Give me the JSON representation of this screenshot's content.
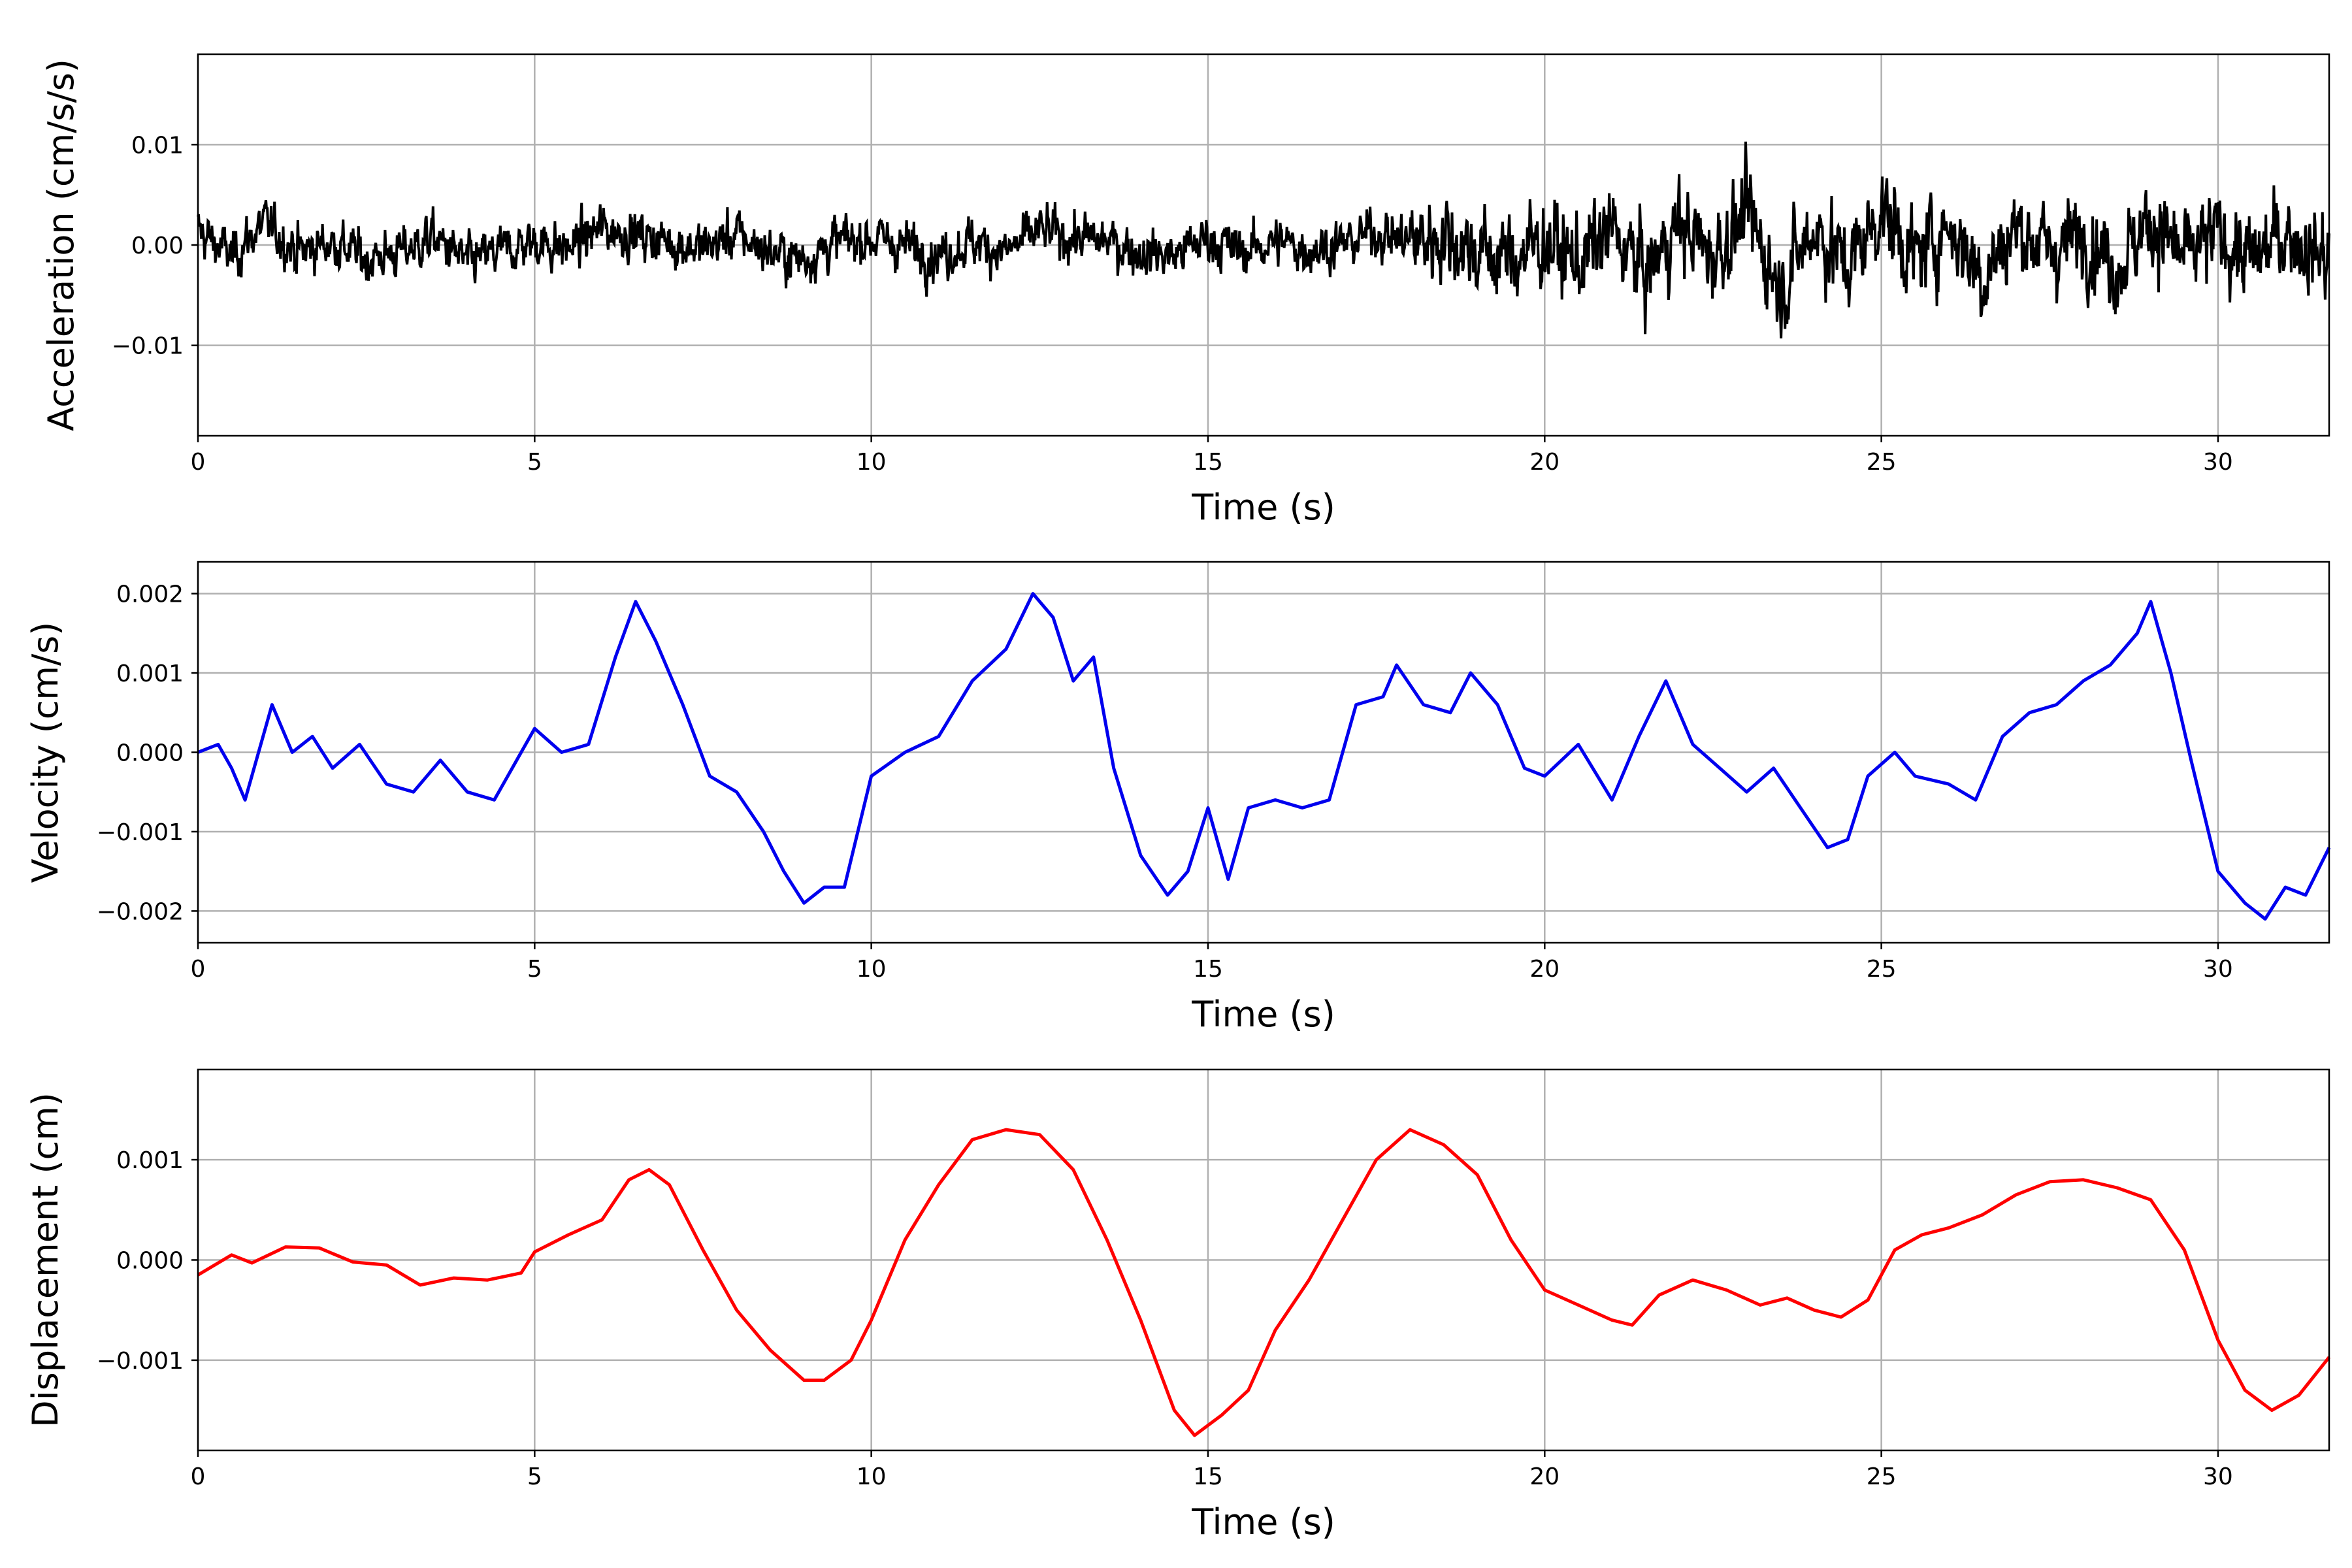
{
  "chart_data": [
    {
      "type": "line",
      "xlabel": "Time (s)",
      "ylabel": "Acceleration (cm/s/s)",
      "xlim": [
        0,
        31.65
      ],
      "ylim": [
        -0.019,
        0.019
      ],
      "xticks": [
        "0",
        "5",
        "10",
        "15",
        "20",
        "25",
        "30"
      ],
      "yticks": [
        -0.01,
        0.0,
        0.01
      ],
      "ytick_labels": [
        "−0.01",
        "0.00",
        "0.01"
      ],
      "grid": true,
      "series": [
        {
          "color": "#000000",
          "x": [
            0,
            0.5,
            1,
            1.5,
            2,
            2.5,
            3,
            3.5,
            4,
            4.5,
            5,
            5.5,
            6,
            6.5,
            7,
            7.5,
            8,
            8.5,
            9,
            9.5,
            10,
            10.5,
            11,
            11.5,
            12,
            12.5,
            13,
            13.5,
            14,
            14.5,
            15,
            15.5,
            16,
            16.5,
            17,
            17.5,
            18,
            18.5,
            19,
            19.5,
            20,
            20.5,
            21,
            21.5,
            22,
            22.5,
            23,
            23.5,
            24,
            24.5,
            25,
            25.5,
            26,
            26.5,
            27,
            27.5,
            28,
            28.5,
            29,
            29.5,
            30,
            30.5,
            31,
            31.5
          ],
          "y": [
            0.004,
            -0.003,
            0.006,
            -0.002,
            0.001,
            -0.004,
            -0.002,
            0.002,
            -0.005,
            -0.002,
            0.001,
            -0.001,
            0.005,
            0.003,
            0.001,
            -0.001,
            0.003,
            -0.002,
            -0.004,
            0.001,
            0.002,
            0.0,
            -0.003,
            0.001,
            -0.002,
            0.004,
            0.002,
            0.001,
            -0.002,
            -0.003,
            0.002,
            -0.002,
            0.001,
            -0.001,
            0.0,
            0.004,
            0.001,
            0.003,
            -0.002,
            -0.004,
            0.001,
            -0.005,
            0.004,
            -0.008,
            0.006,
            -0.003,
            0.009,
            -0.012,
            0.005,
            -0.006,
            0.01,
            -0.004,
            0.006,
            -0.009,
            0.005,
            -0.002,
            0.004,
            -0.006,
            0.007,
            -0.004,
            0.003,
            -0.005,
            0.004,
            -0.003
          ]
        }
      ]
    },
    {
      "type": "line",
      "xlabel": "Time (s)",
      "ylabel": "Velocity (cm/s)",
      "xlim": [
        0,
        31.65
      ],
      "ylim": [
        -0.0024,
        0.0024
      ],
      "xticks": [
        "0",
        "5",
        "10",
        "15",
        "20",
        "25",
        "30"
      ],
      "yticks": [
        -0.002,
        -0.001,
        0.0,
        0.001,
        0.002
      ],
      "ytick_labels": [
        "−0.002",
        "−0.001",
        "0.000",
        "0.001",
        "0.002"
      ],
      "grid": true,
      "series": [
        {
          "color": "#0000ee",
          "x": [
            0,
            0.3,
            0.5,
            0.7,
            1.1,
            1.4,
            1.7,
            2.0,
            2.4,
            2.8,
            3.2,
            3.6,
            4.0,
            4.4,
            4.8,
            5.0,
            5.4,
            5.8,
            6.2,
            6.5,
            6.8,
            7.2,
            7.6,
            8.0,
            8.4,
            8.7,
            9.0,
            9.3,
            9.6,
            10.0,
            10.5,
            11.0,
            11.5,
            12.0,
            12.4,
            12.7,
            13.0,
            13.3,
            13.6,
            14.0,
            14.4,
            14.7,
            15.0,
            15.3,
            15.6,
            16.0,
            16.4,
            16.8,
            17.2,
            17.6,
            17.8,
            18.2,
            18.6,
            18.9,
            19.3,
            19.7,
            20.0,
            20.5,
            21.0,
            21.4,
            21.8,
            22.2,
            22.6,
            23.0,
            23.4,
            23.8,
            24.2,
            24.5,
            24.8,
            25.2,
            25.5,
            26.0,
            26.4,
            26.8,
            27.2,
            27.6,
            28.0,
            28.4,
            28.8,
            29.0,
            29.3,
            29.6,
            30.0,
            30.4,
            30.7,
            31.0,
            31.3,
            31.65
          ],
          "y": [
            0.0,
            0.0001,
            -0.0002,
            -0.0006,
            0.0006,
            0.0,
            0.0002,
            -0.0002,
            0.0001,
            -0.0004,
            -0.0005,
            -0.0001,
            -0.0005,
            -0.0006,
            0.0,
            0.0003,
            0.0,
            0.0001,
            0.0012,
            0.0019,
            0.0014,
            0.0006,
            -0.0003,
            -0.0005,
            -0.001,
            -0.0015,
            -0.0019,
            -0.0017,
            -0.0017,
            -0.0003,
            0.0,
            0.0002,
            0.0009,
            0.0013,
            0.002,
            0.0017,
            0.0009,
            0.0012,
            -0.0002,
            -0.0013,
            -0.0018,
            -0.0015,
            -0.0007,
            -0.0016,
            -0.0007,
            -0.0006,
            -0.0007,
            -0.0006,
            0.0006,
            0.0007,
            0.0011,
            0.0006,
            0.0005,
            0.001,
            0.0006,
            -0.0002,
            -0.0003,
            0.0001,
            -0.0006,
            0.0002,
            0.0009,
            0.0001,
            -0.0002,
            -0.0005,
            -0.0002,
            -0.0007,
            -0.0012,
            -0.0011,
            -0.0003,
            0.0,
            -0.0003,
            -0.0004,
            -0.0006,
            0.0002,
            0.0005,
            0.0006,
            0.0009,
            0.0011,
            0.0015,
            0.0019,
            0.001,
            -0.0001,
            -0.0015,
            -0.0019,
            -0.0021,
            -0.0017,
            -0.0018,
            -0.0012
          ]
        }
      ]
    },
    {
      "type": "line",
      "xlabel": "Time (s)",
      "ylabel": "Displacement (cm)",
      "xlim": [
        0,
        31.65
      ],
      "ylim": [
        -0.0019,
        0.0019
      ],
      "xticks": [
        "0",
        "5",
        "10",
        "15",
        "20",
        "25",
        "30"
      ],
      "yticks": [
        -0.001,
        0.0,
        0.001
      ],
      "ytick_labels": [
        "−0.001",
        "0.000",
        "0.001"
      ],
      "grid": true,
      "series": [
        {
          "color": "#ff0000",
          "x": [
            0,
            0.5,
            0.8,
            1.3,
            1.8,
            2.3,
            2.8,
            3.3,
            3.8,
            4.3,
            4.8,
            5.0,
            5.5,
            6.0,
            6.4,
            6.7,
            7.0,
            7.5,
            8.0,
            8.5,
            9.0,
            9.3,
            9.7,
            10.0,
            10.5,
            11.0,
            11.5,
            12.0,
            12.5,
            13.0,
            13.5,
            14.0,
            14.5,
            14.8,
            15.2,
            15.6,
            16.0,
            16.5,
            17.0,
            17.5,
            18.0,
            18.5,
            19.0,
            19.5,
            20.0,
            20.5,
            21.0,
            21.3,
            21.7,
            22.2,
            22.7,
            23.2,
            23.6,
            24.0,
            24.4,
            24.8,
            25.2,
            25.6,
            26.0,
            26.5,
            27.0,
            27.5,
            28.0,
            28.5,
            29.0,
            29.5,
            30.0,
            30.4,
            30.8,
            31.2,
            31.65
          ],
          "y": [
            -0.00015,
            5e-05,
            -3e-05,
            0.00013,
            0.00012,
            -2e-05,
            -5e-05,
            -0.00025,
            -0.00018,
            -0.0002,
            -0.00013,
            8e-05,
            0.00025,
            0.0004,
            0.0008,
            0.0009,
            0.00075,
            0.0001,
            -0.0005,
            -0.0009,
            -0.0012,
            -0.0012,
            -0.001,
            -0.0006,
            0.0002,
            0.00075,
            0.0012,
            0.0013,
            0.00125,
            0.0009,
            0.0002,
            -0.0006,
            -0.0015,
            -0.00175,
            -0.00155,
            -0.0013,
            -0.0007,
            -0.0002,
            0.0004,
            0.001,
            0.0013,
            0.00115,
            0.00085,
            0.0002,
            -0.0003,
            -0.00045,
            -0.0006,
            -0.00065,
            -0.00035,
            -0.0002,
            -0.0003,
            -0.00045,
            -0.00038,
            -0.0005,
            -0.00057,
            -0.0004,
            0.0001,
            0.00025,
            0.00032,
            0.00045,
            0.00065,
            0.00078,
            0.0008,
            0.00072,
            0.0006,
            0.0001,
            -0.0008,
            -0.0013,
            -0.0015,
            -0.00135,
            -0.00097
          ]
        }
      ]
    }
  ]
}
